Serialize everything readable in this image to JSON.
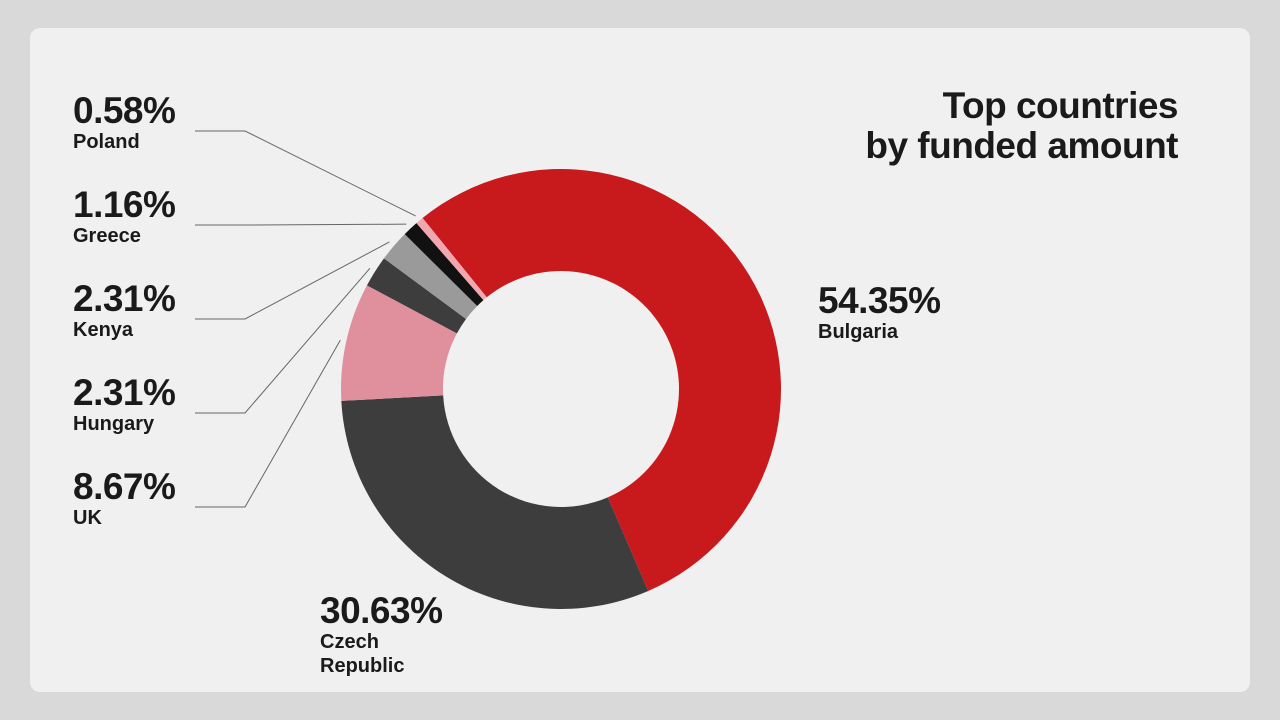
{
  "chart_data": {
    "type": "donut",
    "title": "Top countries\nby funded amount",
    "categories": [
      "Bulgaria",
      "Czech Republic",
      "UK",
      "Hungary",
      "Kenya",
      "Greece",
      "Poland"
    ],
    "values": [
      54.35,
      30.63,
      8.67,
      2.31,
      2.31,
      1.16,
      0.58
    ],
    "value_labels": [
      "54.35%",
      "30.63%",
      "8.67%",
      "2.31%",
      "2.31%",
      "1.16%",
      "0.58%"
    ],
    "colors": [
      "#c8191c",
      "#3d3d3d",
      "#e0909c",
      "#3d3d3d",
      "#9a9a9a",
      "#111111",
      "#f2a6b0"
    ]
  }
}
